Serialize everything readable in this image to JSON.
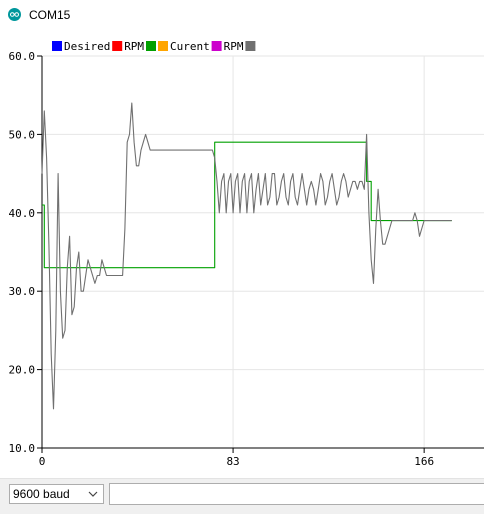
{
  "window": {
    "title": "COM15"
  },
  "legend": [
    {
      "label": "Desired",
      "swatch_color": "#0000ff"
    },
    {
      "label": "RPM",
      "swatch_color": "#ff0000"
    },
    {
      "label": "",
      "swatch_color": "#00a000"
    },
    {
      "label": "Curent",
      "swatch_color": "#ffa500"
    },
    {
      "label": "RPM",
      "swatch_color": "#cc00cc"
    },
    {
      "label": "",
      "swatch_color": "#707070"
    }
  ],
  "bottom": {
    "baud_rate": "9600 baud",
    "send_placeholder": ""
  },
  "chart_data": {
    "type": "line",
    "title": "",
    "xlabel": "",
    "ylabel": "",
    "x_ticks": [
      "0",
      "83",
      "166"
    ],
    "y_ticks": [
      "10.0",
      "20.0",
      "30.0",
      "40.0",
      "50.0",
      "60.0"
    ],
    "xlim": [
      0,
      192
    ],
    "ylim": [
      10,
      60
    ],
    "grid": true,
    "legend_position": "top-left",
    "series": [
      {
        "name": "",
        "color": "#00a000",
        "x": [
          0,
          1,
          1,
          75,
          75,
          141,
          141,
          143,
          143,
          178
        ],
        "y": [
          41,
          41,
          33,
          33,
          49,
          49,
          44,
          44,
          39,
          39
        ]
      },
      {
        "name": "",
        "color": "#707070",
        "x": [
          0,
          1,
          2,
          3,
          4,
          5,
          6,
          7,
          8,
          9,
          10,
          11,
          12,
          13,
          14,
          15,
          16,
          17,
          18,
          19,
          20,
          21,
          22,
          23,
          24,
          25,
          26,
          27,
          28,
          29,
          30,
          31,
          32,
          33,
          34,
          35,
          36,
          37,
          38,
          39,
          40,
          41,
          42,
          43,
          44,
          45,
          46,
          47,
          48,
          49,
          50,
          51,
          52,
          53,
          54,
          55,
          56,
          57,
          58,
          59,
          60,
          61,
          62,
          63,
          64,
          65,
          66,
          67,
          68,
          69,
          70,
          71,
          72,
          73,
          74,
          75,
          76,
          77,
          78,
          79,
          80,
          81,
          82,
          83,
          84,
          85,
          86,
          87,
          88,
          89,
          90,
          91,
          92,
          93,
          94,
          95,
          96,
          97,
          98,
          99,
          100,
          101,
          102,
          103,
          104,
          105,
          106,
          107,
          108,
          109,
          110,
          111,
          112,
          113,
          114,
          115,
          116,
          117,
          118,
          119,
          120,
          121,
          122,
          123,
          124,
          125,
          126,
          127,
          128,
          129,
          130,
          131,
          132,
          133,
          134,
          135,
          136,
          137,
          138,
          139,
          140,
          141,
          142,
          143,
          144,
          145,
          146,
          147,
          148,
          149,
          150,
          151,
          152,
          153,
          154,
          155,
          156,
          157,
          158,
          159,
          160,
          161,
          162,
          163,
          164,
          165,
          166,
          167,
          168,
          169,
          170,
          171,
          172,
          173,
          174,
          175,
          176,
          177,
          178
        ],
        "y": [
          45,
          53,
          47,
          36,
          22,
          15,
          25,
          45,
          30,
          24,
          25,
          33,
          37,
          27,
          28,
          33,
          35,
          30,
          30,
          32,
          34,
          33,
          32,
          31,
          32,
          32,
          34,
          33,
          32,
          32,
          32,
          32,
          32,
          32,
          32,
          32,
          38,
          49,
          50,
          54,
          49,
          46,
          46,
          48,
          49,
          50,
          49,
          48,
          48,
          48,
          48,
          48,
          48,
          48,
          48,
          48,
          48,
          48,
          48,
          48,
          48,
          48,
          48,
          48,
          48,
          48,
          48,
          48,
          48,
          48,
          48,
          48,
          48,
          48,
          48,
          47,
          44,
          40,
          44,
          45,
          40,
          44,
          45,
          40,
          44,
          45,
          40,
          44,
          45,
          40,
          44,
          45,
          40,
          43,
          45,
          41,
          43,
          45,
          41,
          42,
          45,
          45,
          41,
          42,
          44,
          45,
          42,
          41,
          44,
          45,
          42,
          41,
          43,
          45,
          43,
          41,
          43,
          44,
          43,
          41,
          43,
          45,
          44,
          41,
          42,
          44,
          45,
          43,
          41,
          42,
          44,
          45,
          44,
          42,
          43,
          44,
          44,
          43,
          44,
          44,
          43,
          50,
          40,
          34,
          31,
          38,
          43,
          39,
          36,
          36,
          37,
          38,
          39,
          39,
          39,
          39,
          39,
          39,
          39,
          39,
          39,
          39,
          40,
          39,
          37,
          38,
          39,
          39,
          39,
          39,
          39,
          39,
          39,
          39,
          39,
          39,
          39,
          39,
          39
        ]
      }
    ]
  }
}
